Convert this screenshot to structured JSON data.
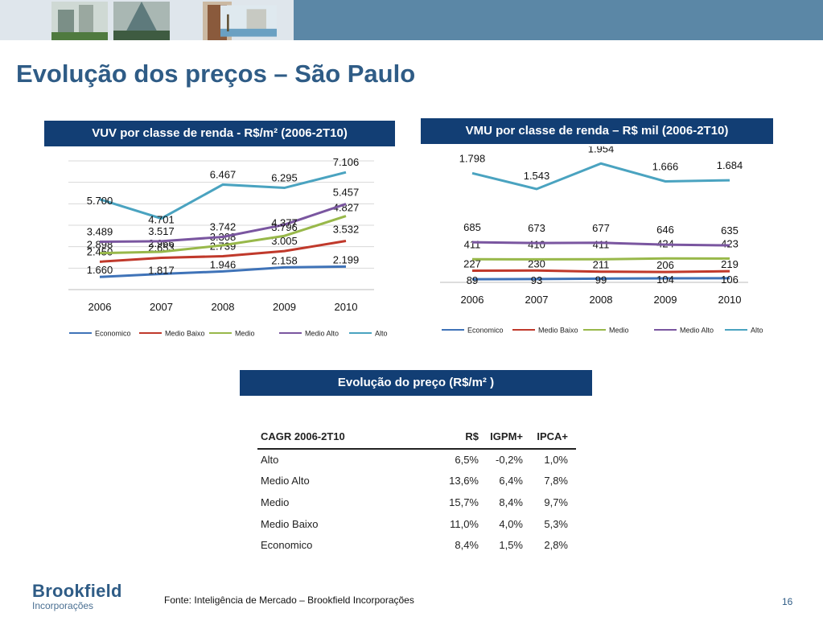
{
  "slide": {
    "title": "Evolução dos preços – São Paulo",
    "footer": "Fonte: Inteligência de Mercado – Brookfield Incorporações",
    "page_number": "16",
    "logo_main": "Brookfield",
    "logo_sub": "Incorporações"
  },
  "colors": {
    "header_bg": "#123e74",
    "topbar": "#5b87a6",
    "title": "#2f5c86",
    "Economico": "#3f73b8",
    "Medio Baixo": "#c0392b",
    "Medio": "#98b84a",
    "Medio Alto": "#7a56a0",
    "Alto": "#4aa3c0"
  },
  "charts": {
    "vuv_header": "VUV por classe de renda - R$/m² (2006-2T10)",
    "vmu_header": "VMU por classe de renda – R$ mil  (2006-2T10)",
    "table_header": "Evolução do preço (R$/m² )"
  },
  "chart_data": [
    {
      "type": "line",
      "title": "VUV por classe de renda - R$/m² (2006-2T10)",
      "categories": [
        "2006",
        "2007",
        "2008",
        "2009",
        "2010"
      ],
      "ylim": [
        1000,
        7700
      ],
      "series": [
        {
          "name": "Economico",
          "values": [
            1660,
            1817,
            1946,
            2158,
            2199
          ],
          "labels": [
            "1.660",
            "1.817",
            "1.946",
            "2.158",
            "2.199"
          ]
        },
        {
          "name": "Medio Baixo",
          "values": [
            2450,
            2653,
            2739,
            3005,
            3532
          ],
          "labels": [
            "2.450",
            "2.653",
            "2.739",
            "3.005",
            "3.532"
          ]
        },
        {
          "name": "Medio",
          "values": [
            2898,
            2966,
            3308,
            3796,
            4827
          ],
          "labels": [
            "2.898",
            "2.966",
            "3.308",
            "3.796",
            "4.827"
          ]
        },
        {
          "name": "Medio Alto",
          "values": [
            3489,
            3517,
            3742,
            4377,
            5457
          ],
          "labels": [
            "3.489",
            "3.517",
            "3.742",
            "4.377",
            "5.457"
          ]
        },
        {
          "name": "Alto",
          "values": [
            5700,
            4701,
            6467,
            6295,
            7106
          ],
          "labels": [
            "5.700",
            "4.701",
            "6.467",
            "6.295",
            "7.106"
          ]
        }
      ]
    },
    {
      "type": "line",
      "title": "VMU por classe de renda – R$ mil  (2006-2T10)",
      "categories": [
        "2006",
        "2007",
        "2008",
        "2009",
        "2010"
      ],
      "ylim": [
        0,
        2100
      ],
      "series": [
        {
          "name": "Economico",
          "values": [
            89,
            93,
            99,
            104,
            106
          ],
          "labels": [
            "89",
            "93",
            "99",
            "104",
            "106"
          ]
        },
        {
          "name": "Medio Baixo",
          "values": [
            227,
            230,
            211,
            206,
            219
          ],
          "labels": [
            "227",
            "230",
            "211",
            "206",
            "219"
          ]
        },
        {
          "name": "Medio",
          "values": [
            411,
            410,
            411,
            424,
            423
          ],
          "labels": [
            "411",
            "410",
            "411",
            "424",
            "423"
          ]
        },
        {
          "name": "Medio Alto",
          "values": [
            685,
            673,
            677,
            646,
            635
          ],
          "labels": [
            "685",
            "673",
            "677",
            "646",
            "635"
          ]
        },
        {
          "name": "Alto",
          "values": [
            1798,
            1543,
            1954,
            1666,
            1684
          ],
          "labels": [
            "1.798",
            "1.543",
            "1.954",
            "1.666",
            "1.684"
          ]
        }
      ]
    },
    {
      "type": "table",
      "title": "Evolução do preço (R$/m² )",
      "columns": [
        "CAGR 2006-2T10",
        "R$",
        "IGPM+",
        "IPCA+"
      ],
      "rows": [
        [
          "Alto",
          "6,5%",
          "-0,2%",
          "1,0%"
        ],
        [
          "Medio Alto",
          "13,6%",
          "6,4%",
          "7,8%"
        ],
        [
          "Medio",
          "15,7%",
          "8,4%",
          "9,7%"
        ],
        [
          "Medio Baixo",
          "11,0%",
          "4,0%",
          "5,3%"
        ],
        [
          "Economico",
          "8,4%",
          "1,5%",
          "2,8%"
        ]
      ]
    }
  ]
}
